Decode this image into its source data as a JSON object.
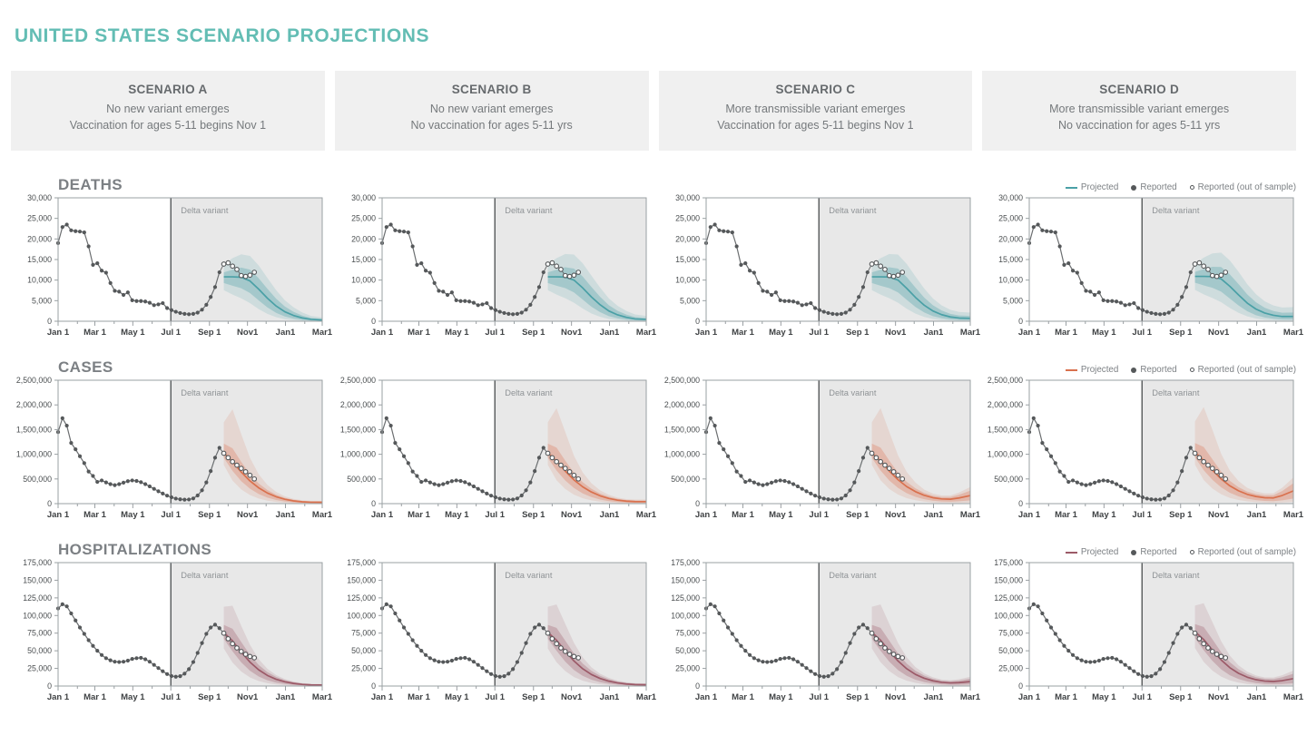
{
  "page_title": "UNITED STATES SCENARIO PROJECTIONS",
  "scenario_headers": [
    {
      "title": "SCENARIO A",
      "line1": "No new variant emerges",
      "line2": "Vaccination for ages 5-11 begins Nov 1"
    },
    {
      "title": "SCENARIO B",
      "line1": "No new variant emerges",
      "line2": "No vaccination for ages 5-11 yrs"
    },
    {
      "title": "SCENARIO C",
      "line1": "More transmissible variant emerges",
      "line2": "Vaccination for ages 5-11 begins Nov 1"
    },
    {
      "title": "SCENARIO D",
      "line1": "More transmissible variant emerges",
      "line2": "No vaccination for ages 5-11 yrs"
    }
  ],
  "legend": {
    "projected": "Projected",
    "reported": "Reported",
    "out_of_sample": "Reported (out of sample)"
  },
  "delta_label": "Delta variant",
  "colors": {
    "title_teal": "#63bdb4",
    "delta_region": "#e8e8e8",
    "delta_line": "#55585a",
    "panel_border": "#9aa0a3",
    "tick_text": "#4a4e50",
    "delta_text": "#8f9396",
    "reported_dot": "#55585a",
    "reported_line": "#6b6e70",
    "open_dot_fill": "#ffffff"
  },
  "chart_data": [
    {
      "type": "line",
      "label": "DEATHS",
      "color": "#4aa0a6",
      "inner_band_opacity": 0.32,
      "outer_band_opacity": 0.16,
      "ylim": [
        0,
        30000
      ],
      "yticks": [
        0,
        5000,
        10000,
        15000,
        20000,
        25000,
        30000
      ],
      "x_max_weeks": 60.57,
      "xtick_labels": [
        "Jan 1",
        "Mar 1",
        "May 1",
        "Jul 1",
        "Sep 1",
        "Nov1",
        "Jan1",
        "Mar1"
      ],
      "xtick_weeks": [
        0,
        8.43,
        17.14,
        25.86,
        34.71,
        43.43,
        52.14,
        60.57
      ],
      "minor_tick_weeks": [
        4.43,
        12.86,
        21.57,
        30.29,
        39.0,
        47.71,
        56.57
      ],
      "delta_start_week": 25.86,
      "reported": {
        "start_week": 0,
        "interval": 1,
        "values": [
          19000,
          22900,
          23500,
          22100,
          21900,
          21800,
          21600,
          18200,
          13700,
          14100,
          12300,
          11800,
          9300,
          7400,
          7200,
          6400,
          7000,
          5100,
          4900,
          4900,
          4800,
          4500,
          3900,
          4100,
          4400,
          3200,
          2700,
          2300,
          2000,
          1800,
          1700,
          1800,
          2100,
          2800,
          4000,
          5900,
          8300,
          11900
        ]
      },
      "out_of_sample": {
        "start_week": 38,
        "interval": 1,
        "values": [
          13900,
          14200,
          13400,
          12600,
          11100,
          10900,
          11200,
          11900
        ]
      },
      "projection_weeks": [
        38,
        40,
        42,
        44,
        46,
        48,
        50,
        52,
        54,
        56,
        58,
        60.6
      ],
      "scenarios": {
        "A": [
          10800,
          10800,
          10700,
          9800,
          7800,
          5600,
          3700,
          2300,
          1400,
          800,
          450,
          300
        ],
        "B": [
          10800,
          10800,
          10750,
          10000,
          8100,
          5900,
          4000,
          2500,
          1550,
          950,
          570,
          430
        ],
        "C": [
          10800,
          10800,
          10750,
          10000,
          8000,
          5800,
          3900,
          2500,
          1600,
          1050,
          780,
          700
        ],
        "D": [
          10900,
          10900,
          10850,
          10300,
          8500,
          6400,
          4400,
          2950,
          2000,
          1450,
          1150,
          1150
        ]
      },
      "band_factors": {
        "inner_lo": [
          0.86,
          0.8,
          0.75,
          0.7,
          0.65,
          0.6,
          0.55,
          0.5,
          0.46,
          0.42,
          0.39,
          0.37
        ],
        "inner_hi": [
          1.1,
          1.16,
          1.22,
          1.28,
          1.34,
          1.41,
          1.48,
          1.56,
          1.64,
          1.72,
          1.8,
          1.85
        ],
        "outer_lo": [
          0.7,
          0.6,
          0.52,
          0.45,
          0.38,
          0.32,
          0.27,
          0.22,
          0.18,
          0.15,
          0.13,
          0.12
        ],
        "outer_hi": [
          1.28,
          1.42,
          1.52,
          1.62,
          1.74,
          1.88,
          2.04,
          2.22,
          2.42,
          2.65,
          2.9,
          3.0
        ]
      }
    },
    {
      "type": "line",
      "label": "CASES",
      "color": "#d9714e",
      "inner_band_opacity": 0.3,
      "outer_band_opacity": 0.15,
      "ylim": [
        0,
        2500000
      ],
      "yticks": [
        0,
        500000,
        1000000,
        1500000,
        2000000,
        2500000
      ],
      "x_max_weeks": 60.57,
      "xtick_labels": [
        "Jan 1",
        "Mar 1",
        "May 1",
        "Jul 1",
        "Sep 1",
        "Nov1",
        "Jan1",
        "Mar1"
      ],
      "xtick_weeks": [
        0,
        8.43,
        17.14,
        25.86,
        34.71,
        43.43,
        52.14,
        60.57
      ],
      "minor_tick_weeks": [
        4.43,
        12.86,
        21.57,
        30.29,
        39.0,
        47.71,
        56.57
      ],
      "delta_start_week": 25.86,
      "reported": {
        "start_week": 0,
        "interval": 1,
        "values": [
          1450000,
          1730000,
          1580000,
          1230000,
          1100000,
          960000,
          820000,
          650000,
          560000,
          440000,
          470000,
          430000,
          395000,
          375000,
          395000,
          425000,
          455000,
          470000,
          460000,
          435000,
          395000,
          350000,
          300000,
          250000,
          205000,
          162000,
          128000,
          102000,
          87000,
          80000,
          84000,
          105000,
          165000,
          270000,
          430000,
          660000,
          930000,
          1130000
        ]
      },
      "out_of_sample": {
        "start_week": 38,
        "interval": 1,
        "values": [
          1020000,
          930000,
          850000,
          780000,
          715000,
          645000,
          575000,
          500000
        ]
      },
      "projection_weeks": [
        38,
        40,
        42,
        44,
        46,
        48,
        50,
        52,
        54,
        56,
        58,
        60.6
      ],
      "scenarios": {
        "A": [
          1030000,
          850000,
          640000,
          460000,
          320000,
          215000,
          140000,
          88000,
          55000,
          37000,
          29000,
          27000
        ],
        "B": [
          1030000,
          860000,
          660000,
          480000,
          340000,
          235000,
          158000,
          105000,
          70000,
          50000,
          42000,
          40000
        ],
        "C": [
          1030000,
          860000,
          660000,
          485000,
          345000,
          243000,
          168000,
          120000,
          95000,
          90000,
          115000,
          165000
        ],
        "D": [
          1040000,
          870000,
          680000,
          500000,
          360000,
          260000,
          188000,
          145000,
          120000,
          115000,
          165000,
          260000
        ]
      },
      "band_factors": {
        "inner_lo": [
          0.9,
          0.78,
          0.71,
          0.66,
          0.61,
          0.57,
          0.53,
          0.49,
          0.46,
          0.43,
          0.41,
          0.4
        ],
        "inner_hi": [
          1.18,
          1.32,
          1.32,
          1.3,
          1.28,
          1.28,
          1.3,
          1.34,
          1.4,
          1.48,
          1.55,
          1.6
        ],
        "outer_lo": [
          0.76,
          0.55,
          0.45,
          0.38,
          0.32,
          0.28,
          0.24,
          0.2,
          0.17,
          0.15,
          0.14,
          0.13
        ],
        "outer_hi": [
          1.6,
          2.25,
          2.2,
          2.02,
          1.86,
          1.76,
          1.7,
          1.7,
          1.74,
          1.84,
          1.95,
          2.05
        ]
      }
    },
    {
      "type": "line",
      "label": "HOSPITALIZATIONS",
      "color": "#9c5a68",
      "inner_band_opacity": 0.3,
      "outer_band_opacity": 0.15,
      "ylim": [
        0,
        175000
      ],
      "yticks": [
        0,
        25000,
        50000,
        75000,
        100000,
        125000,
        150000,
        175000
      ],
      "x_max_weeks": 60.57,
      "xtick_labels": [
        "Jan 1",
        "Mar 1",
        "May 1",
        "Jul 1",
        "Sep 1",
        "Nov1",
        "Jan1",
        "Mar1"
      ],
      "xtick_weeks": [
        0,
        8.43,
        17.14,
        25.86,
        34.71,
        43.43,
        52.14,
        60.57
      ],
      "minor_tick_weeks": [
        4.43,
        12.86,
        21.57,
        30.29,
        39.0,
        47.71,
        56.57
      ],
      "delta_start_week": 25.86,
      "reported": {
        "start_week": 0,
        "interval": 1,
        "values": [
          110000,
          116000,
          113000,
          103000,
          93000,
          83000,
          74000,
          65000,
          57000,
          50000,
          44000,
          39500,
          36500,
          34500,
          34000,
          34500,
          36000,
          38500,
          39500,
          40000,
          38000,
          34500,
          30000,
          25500,
          21000,
          17000,
          14200,
          13200,
          14000,
          17500,
          24000,
          34000,
          47000,
          61000,
          74000,
          83000,
          87000,
          82000
        ]
      },
      "out_of_sample": {
        "start_week": 38,
        "interval": 1,
        "values": [
          75000,
          67000,
          60000,
          54000,
          49000,
          45000,
          42000,
          40000
        ]
      },
      "projection_weeks": [
        38,
        40,
        42,
        44,
        46,
        48,
        50,
        52,
        54,
        56,
        58,
        60.6
      ],
      "scenarios": {
        "A": [
          76000,
          64000,
          48000,
          34000,
          23000,
          15000,
          9600,
          6000,
          3700,
          2300,
          1600,
          1400
        ],
        "B": [
          76000,
          65000,
          49500,
          35500,
          24500,
          16300,
          10700,
          6900,
          4400,
          2900,
          2100,
          1800
        ],
        "C": [
          76000,
          65000,
          49500,
          35500,
          24500,
          16500,
          11000,
          7400,
          5200,
          4400,
          4800,
          6300
        ],
        "D": [
          77000,
          66000,
          51000,
          37000,
          26000,
          18000,
          12500,
          9000,
          7000,
          6400,
          7600,
          10500
        ]
      },
      "band_factors": {
        "inner_lo": [
          0.88,
          0.77,
          0.7,
          0.64,
          0.59,
          0.55,
          0.51,
          0.47,
          0.43,
          0.4,
          0.38,
          0.36
        ],
        "inner_hi": [
          1.14,
          1.27,
          1.3,
          1.3,
          1.3,
          1.32,
          1.35,
          1.4,
          1.47,
          1.55,
          1.62,
          1.67
        ],
        "outer_lo": [
          0.7,
          0.52,
          0.43,
          0.36,
          0.31,
          0.27,
          0.23,
          0.2,
          0.17,
          0.15,
          0.14,
          0.13
        ],
        "outer_hi": [
          1.48,
          1.78,
          1.78,
          1.72,
          1.66,
          1.63,
          1.63,
          1.67,
          1.75,
          1.88,
          2.02,
          2.1
        ]
      }
    }
  ]
}
